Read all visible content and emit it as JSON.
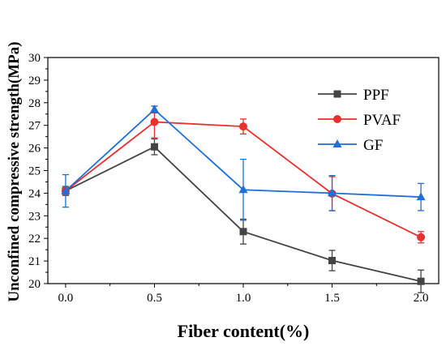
{
  "chart_data": {
    "type": "line",
    "title": "",
    "xlabel": "Fiber content(%)",
    "ylabel": "Unconfined compressive strength(MPa)",
    "x": [
      0.0,
      0.5,
      1.0,
      1.5,
      2.0
    ],
    "x_tick_labels": [
      "0.0",
      "0.5",
      "1.0",
      "1.5",
      "2.0"
    ],
    "y_ticks": [
      20,
      21,
      22,
      23,
      24,
      25,
      26,
      27,
      28,
      29,
      30
    ],
    "xlim": [
      -0.1,
      2.1
    ],
    "ylim": [
      20,
      30
    ],
    "grid": false,
    "legend_position": "top-right",
    "series": [
      {
        "name": "PPF",
        "color": "#444444",
        "marker": "square",
        "values": [
          24.1,
          26.05,
          22.3,
          21.02,
          20.1
        ],
        "errors": [
          0.2,
          0.35,
          0.55,
          0.45,
          0.5
        ]
      },
      {
        "name": "PVAF",
        "color": "#e8302f",
        "marker": "circle",
        "values": [
          24.1,
          27.15,
          26.95,
          23.98,
          22.05
        ],
        "errors": [
          0.15,
          0.7,
          0.33,
          0.75,
          0.25
        ]
      },
      {
        "name": "GF",
        "color": "#1f6fd6",
        "marker": "triangle",
        "values": [
          24.1,
          27.7,
          24.15,
          24.0,
          23.83
        ],
        "errors": [
          0.72,
          0.15,
          1.35,
          0.78,
          0.6
        ]
      }
    ]
  }
}
